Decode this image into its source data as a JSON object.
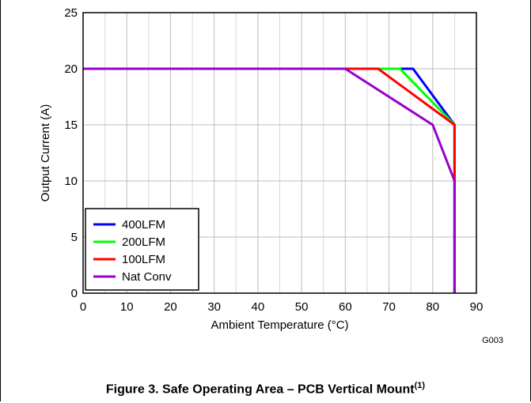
{
  "chart_data": {
    "type": "line",
    "title": "",
    "xlabel": "Ambient Temperature (°C)",
    "ylabel": "Output Current (A)",
    "xlim": [
      0,
      90
    ],
    "ylim": [
      0,
      25
    ],
    "xticks": [
      0,
      10,
      20,
      30,
      40,
      50,
      60,
      70,
      80,
      90
    ],
    "yticks": [
      0,
      5,
      10,
      15,
      20,
      25
    ],
    "grid": true,
    "legend_position": "bottom-left",
    "figure_id": "G003",
    "series": [
      {
        "name": "400LFM",
        "color": "#0000ff",
        "points": [
          [
            0,
            20
          ],
          [
            75.5,
            20
          ],
          [
            85,
            15
          ],
          [
            85,
            0
          ]
        ]
      },
      {
        "name": "200LFM",
        "color": "#00ff00",
        "points": [
          [
            0,
            20
          ],
          [
            72.5,
            20
          ],
          [
            85,
            15
          ],
          [
            85,
            0
          ]
        ]
      },
      {
        "name": "100LFM",
        "color": "#ff0000",
        "points": [
          [
            0,
            20
          ],
          [
            67.5,
            20
          ],
          [
            85,
            15
          ],
          [
            85,
            0
          ]
        ]
      },
      {
        "name": "Nat Conv",
        "color": "#9900cc",
        "points": [
          [
            0,
            20
          ],
          [
            60,
            20
          ],
          [
            80,
            15
          ],
          [
            85,
            10
          ],
          [
            85,
            0
          ]
        ]
      }
    ]
  },
  "caption": {
    "text": "Figure 3. Safe Operating Area – PCB Vertical Mount",
    "superscript": "(1)"
  }
}
